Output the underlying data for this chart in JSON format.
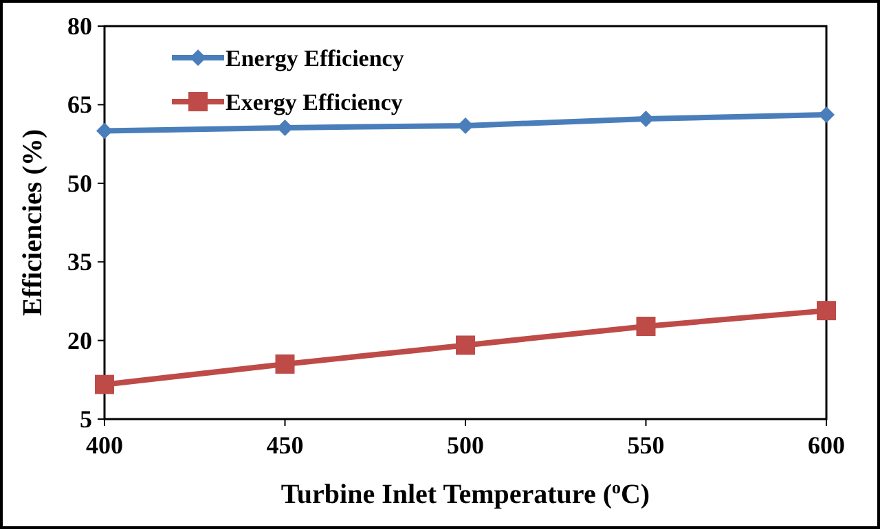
{
  "chart_data": {
    "type": "line",
    "xlabel": "Turbine Inlet Temperature ($^{o}$C)",
    "ylabel": "Efficiencies (%)",
    "x": [
      400,
      450,
      500,
      550,
      600
    ],
    "series": [
      {
        "name": "Energy Efficiency",
        "color": "#4a7ebb",
        "values": [
          60.0,
          60.6,
          61.0,
          62.3,
          63.1
        ],
        "marker": "diamond"
      },
      {
        "name": "Exergy Efficiency",
        "color": "#be4b48",
        "values": [
          11.6,
          15.5,
          19.1,
          22.7,
          25.7
        ],
        "marker": "square"
      }
    ],
    "xlim": [
      400,
      600
    ],
    "xticks": [
      400,
      450,
      500,
      550,
      600
    ],
    "ylim": [
      5,
      80
    ],
    "yticks": [
      5,
      20,
      35,
      50,
      65,
      80
    ],
    "grid": false,
    "legend": "top left"
  }
}
